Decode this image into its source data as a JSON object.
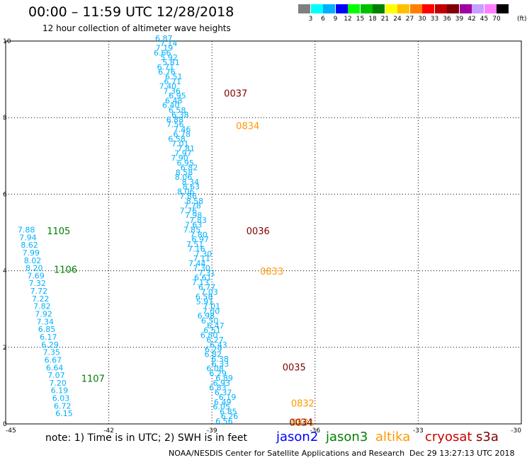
{
  "header": {
    "title": "00:00 – 11:59 UTC 12/28/2018",
    "subtitle": "12 hour collection of altimeter wave heights"
  },
  "colorbar": {
    "labels": [
      "3",
      "6",
      "9",
      "12",
      "15",
      "18",
      "21",
      "24",
      "27",
      "30",
      "33",
      "36",
      "39",
      "42",
      "45",
      "70"
    ],
    "unit": "(ft)",
    "colors": [
      "#808080",
      "#00ffff",
      "#00b0ff",
      "#0000ff",
      "#00ff00",
      "#00c000",
      "#008000",
      "#ffff00",
      "#ffc000",
      "#ff8000",
      "#ff0000",
      "#c00000",
      "#800000",
      "#a000a0",
      "#c8a0ff",
      "#ff80ff",
      "#000000"
    ]
  },
  "footer": {
    "note": "note:  1) Time is in UTC;  2) SWH is in feet",
    "center": "NOAA/NESDIS Center for Satellite Applications and Research",
    "timestamp": "Dec 29 13:27:13 UTC 2018"
  },
  "satellites": [
    {
      "name": "jason2",
      "color": "#0000ff"
    },
    {
      "name": "jason3",
      "color": "#008000"
    },
    {
      "name": "altika",
      "color": "#ff9900"
    },
    {
      "name": "cryosat",
      "color": "#cc0000"
    },
    {
      "name": "s3a",
      "color": "#800000"
    }
  ],
  "chart_data": {
    "type": "scatter",
    "xlim": [
      -45,
      -30
    ],
    "ylim": [
      0,
      10
    ],
    "xticks": [
      "-45",
      "-42",
      "-39",
      "-36",
      "-33",
      "-30"
    ],
    "yticks": [
      "0",
      "2",
      "4",
      "6",
      "8",
      "10"
    ],
    "grid": true,
    "point_color": "#00b0ff",
    "tracks": [
      {
        "name": "west-track",
        "x_start": -44.4,
        "y_start": 5.0,
        "x_end": -43.3,
        "y_end": 0.2,
        "values": [
          "7.88",
          "7.94",
          "8.62",
          "7.99",
          "8.02",
          "8.20",
          "7.69",
          "7.32",
          "7.72",
          "7.22",
          "7.82",
          "7.92",
          "7.34",
          "6.85",
          "6.17",
          "6.29",
          "7.35",
          "6.67",
          "6.64",
          "7.07",
          "7.20",
          "6.19",
          "6.03",
          "6.72",
          "6.15"
        ]
      },
      {
        "name": "central-track",
        "x_start": -40.4,
        "y_start": 10.0,
        "x_end": -38.55,
        "y_end": 0.0,
        "values": [
          "6.87",
          "7.14",
          "7.19",
          "6.66",
          "5.92",
          "5.81",
          "6.71",
          "6.76",
          "6.51",
          "6.71",
          "7.40",
          "7.36",
          "6.95",
          "6.48",
          "6.40",
          "6.58",
          "6.38",
          "6.88",
          "7.56",
          "7.46",
          "6.78",
          "6.58",
          "7.01",
          "7.81",
          "7.97",
          "7.90",
          "6.95",
          "6.82",
          "8.58",
          "8.06",
          "8.34",
          "8.63",
          "8.06",
          "7.86",
          "8.58",
          "7.78",
          "7.76",
          "7.98",
          "7.83",
          "7.63",
          "7.85",
          "7.80",
          "6.97",
          "7.51",
          "7.16",
          "7.30",
          "7.11",
          "7.44",
          "7.30",
          "7.31",
          "6.61",
          "7.13",
          "6.77",
          "7.03",
          "6.58",
          "5.91",
          "7.01",
          "7.00",
          "6.98",
          "6.50",
          "6.47",
          "6.51",
          "6.80",
          "6.27",
          "6.43",
          "6.29",
          "6.82",
          "6.38",
          "6.33",
          "6.08",
          "6.29",
          "6.89",
          "6.93",
          "6.83",
          "6.37",
          "6.19",
          "6.49",
          "6.05",
          "6.85",
          "6.26",
          "6.56"
        ]
      }
    ],
    "pass_labels": [
      {
        "time": "0037",
        "x": -38.65,
        "y": 8.55,
        "color": "#800000"
      },
      {
        "time": "0834",
        "x": -38.3,
        "y": 7.7,
        "color": "#ff9900"
      },
      {
        "time": "1105",
        "x": -43.8,
        "y": 4.95,
        "color": "#008000"
      },
      {
        "time": "0036",
        "x": -38.0,
        "y": 4.95,
        "color": "#800000"
      },
      {
        "time": "1106",
        "x": -43.6,
        "y": 3.95,
        "color": "#008000"
      },
      {
        "time": "0833",
        "x": -37.6,
        "y": 3.9,
        "color": "#ff9900"
      },
      {
        "time": "0035",
        "x": -36.95,
        "y": 1.4,
        "color": "#800000"
      },
      {
        "time": "1107",
        "x": -42.8,
        "y": 1.1,
        "color": "#008000"
      },
      {
        "time": "0832",
        "x": -36.7,
        "y": 0.45,
        "color": "#ff9900"
      },
      {
        "time": "0831",
        "x": -36.7,
        "y": -0.05,
        "color": "#ff9900"
      },
      {
        "time": "0034",
        "x": -36.75,
        "y": -0.05,
        "color": "#800000"
      }
    ]
  }
}
